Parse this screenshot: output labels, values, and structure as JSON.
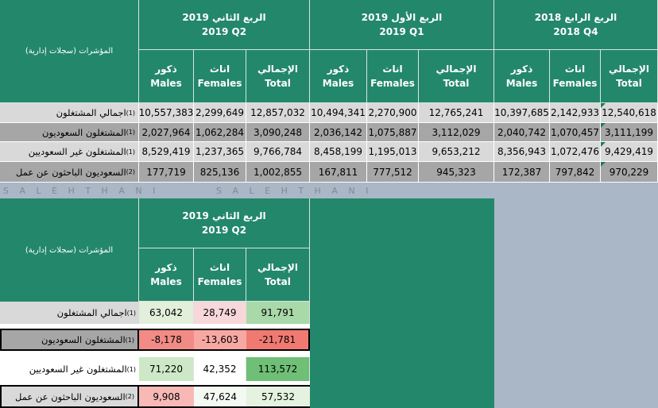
{
  "indicator_header": "المؤشرات (سجلات إدارية)",
  "watermark": "S A L E H T H A N I",
  "top_table": {
    "periods": [
      {
        "line1": "2019 الربع الثاني",
        "line2": "2019 Q2"
      },
      {
        "line1": "2019 الربع الأول",
        "line2": "2019 Q1"
      },
      {
        "line1": "2018 الربع الرابع",
        "line2": "2018 Q4"
      }
    ],
    "columns": [
      {
        "ar": "ذكور",
        "en": "Males"
      },
      {
        "ar": "اناث",
        "en": "Females"
      },
      {
        "ar": "الإجمالي",
        "en": "Total"
      }
    ],
    "rows": [
      {
        "label": "اجمالي المشتغلون",
        "note": "(1)",
        "values": [
          "10,557,383",
          "2,299,649",
          "12,857,032",
          "10,494,341",
          "2,270,900",
          "12,765,241",
          "10,397,685",
          "2,142,933",
          "12,540,618"
        ]
      },
      {
        "label": "المشتغلون السعوديون",
        "note": "(1)",
        "values": [
          "2,027,964",
          "1,062,284",
          "3,090,248",
          "2,036,142",
          "1,075,887",
          "3,112,029",
          "2,040,742",
          "1,070,457",
          "3,111,199"
        ]
      },
      {
        "label": "المشتغلون غير السعوديين",
        "note": "(1)",
        "values": [
          "8,529,419",
          "1,237,365",
          "9,766,784",
          "8,458,199",
          "1,195,013",
          "9,653,212",
          "8,356,943",
          "1,072,476",
          "9,429,419"
        ]
      },
      {
        "label": "السعوديون الباحثون عن عمل",
        "note": "(2)",
        "values": [
          "177,719",
          "825,136",
          "1,002,855",
          "167,811",
          "777,512",
          "945,323",
          "172,387",
          "797,842",
          "970,229"
        ]
      }
    ]
  },
  "bottom_table": {
    "period": {
      "line1": "2019 الربع الثاني",
      "line2": "2019 Q2"
    },
    "columns": [
      {
        "ar": "ذكور",
        "en": "Males"
      },
      {
        "ar": "اناث",
        "en": "Females"
      },
      {
        "ar": "الإجمالي",
        "en": "Total"
      }
    ],
    "rows": [
      {
        "label": "اجمالي المشتغلون",
        "note": "(1)",
        "values": [
          "63,042",
          "28,749",
          "91,791"
        ],
        "colors": [
          "#e2efda",
          "#f8d7da",
          "#a9d8a9"
        ]
      },
      {
        "label": "المشتغلون السعوديون",
        "note": "(1)",
        "values": [
          "-8,178",
          "-13,603",
          "-21,781"
        ],
        "colors": [
          "#f28b85",
          "#f8a8a3",
          "#f07a72"
        ]
      },
      {
        "label": "المشتغلون غير السعوديين",
        "note": "(1)",
        "values": [
          "71,220",
          "42,352",
          "113,572"
        ],
        "colors": [
          "#cde8c6",
          "#ffffff",
          "#6fbf77"
        ]
      },
      {
        "label": "السعوديون الباحثون عن عمل",
        "note": "(2)",
        "values": [
          "9,908",
          "47,624",
          "57,532"
        ],
        "colors": [
          "#f8b9b6",
          "#f4f9f2",
          "#e4f2df"
        ]
      }
    ]
  }
}
